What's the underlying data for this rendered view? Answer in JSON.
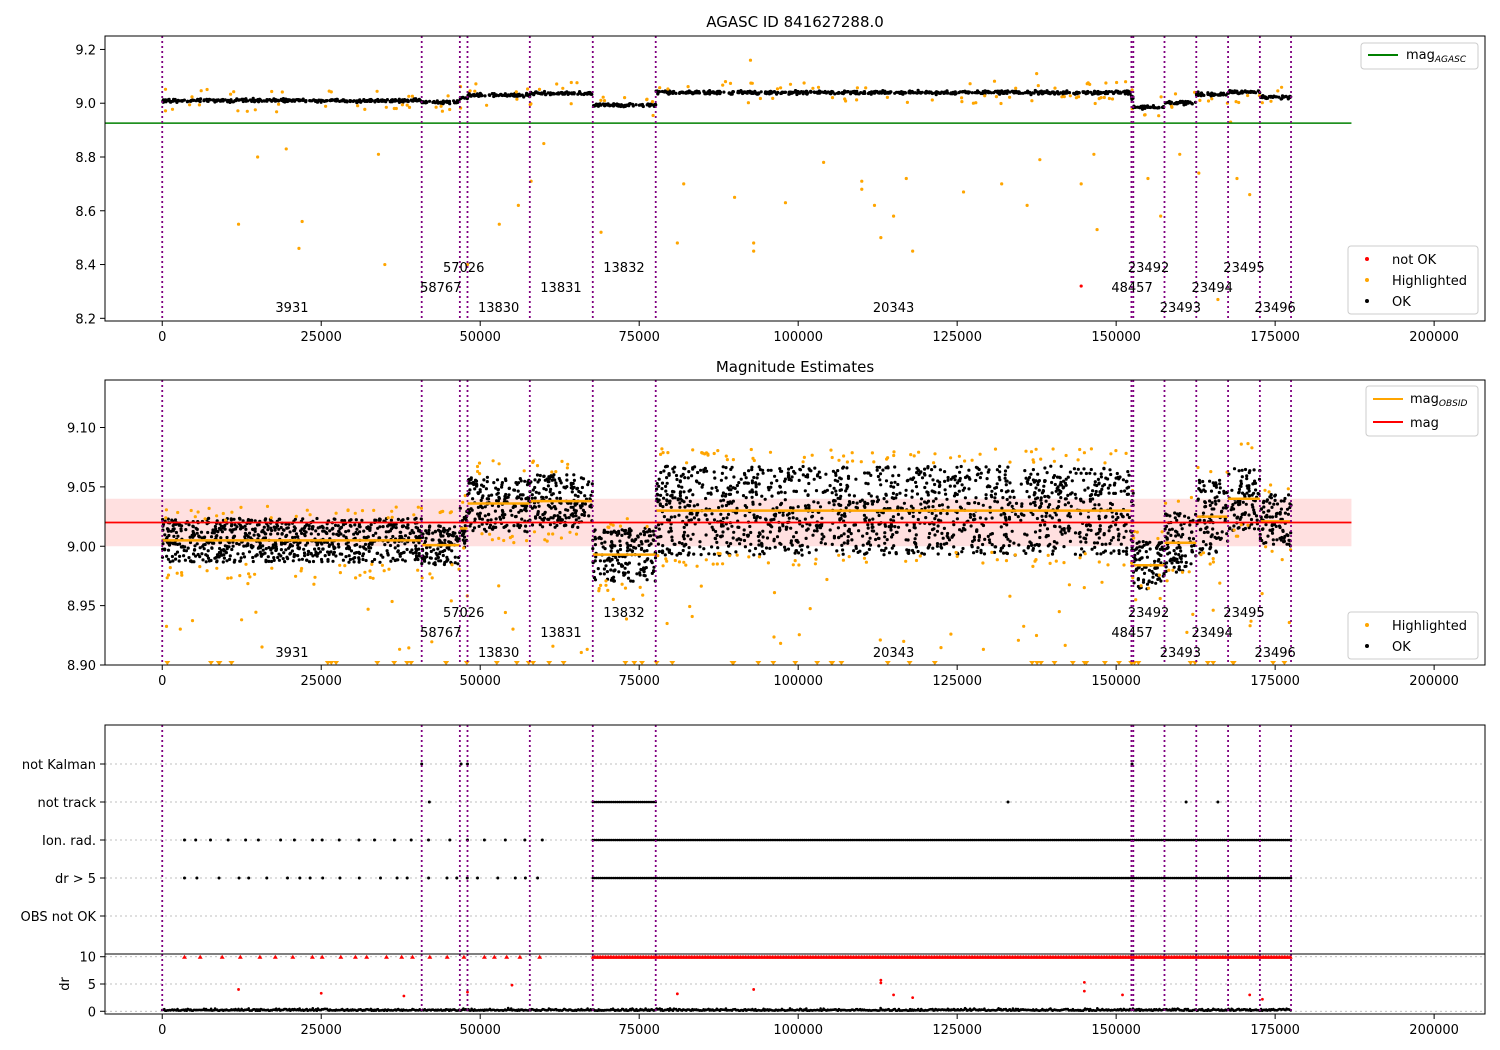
{
  "figure": {
    "title": "AGASC ID 841627288.0"
  },
  "chart_data": [
    {
      "type": "scatter",
      "title": "AGASC ID 841627288.0",
      "xlim": [
        -9000,
        208000
      ],
      "ylim": [
        8.19,
        9.25
      ],
      "xticks": [
        0,
        25000,
        50000,
        75000,
        100000,
        125000,
        150000,
        175000,
        200000
      ],
      "yticks": [
        8.2,
        8.4,
        8.6,
        8.8,
        9.0,
        9.2
      ],
      "obsid_boundaries": [
        0,
        40800,
        46800,
        48000,
        57800,
        67700,
        77600,
        152400,
        152700,
        157600,
        162600,
        167600,
        172600,
        177500
      ],
      "obsid_labels": [
        {
          "label": "3931",
          "x": 20400,
          "row": 0
        },
        {
          "label": "58767",
          "x": 43800,
          "row": 1
        },
        {
          "label": "57026",
          "x": 47400,
          "row": 2
        },
        {
          "label": "13830",
          "x": 52900,
          "row": 0
        },
        {
          "label": "13831",
          "x": 62700,
          "row": 1
        },
        {
          "label": "13832",
          "x": 72600,
          "row": 2
        },
        {
          "label": "20343",
          "x": 115000,
          "row": 0
        },
        {
          "label": "48457",
          "x": 152500,
          "row": 1
        },
        {
          "label": "23492",
          "x": 155100,
          "row": 2
        },
        {
          "label": "23493",
          "x": 160100,
          "row": 0
        },
        {
          "label": "23494",
          "x": 165100,
          "row": 1
        },
        {
          "label": "23495",
          "x": 170100,
          "row": 2
        },
        {
          "label": "23496",
          "x": 175000,
          "row": 0
        }
      ],
      "mag_agasc": 8.926,
      "segment_levels": [
        9.01,
        9.004,
        9.02,
        9.03,
        9.036,
        8.993,
        9.04,
        9.02,
        8.985,
        9.003,
        9.033,
        9.042,
        9.023
      ],
      "series": [
        {
          "name": "not OK",
          "color": "#ff0000"
        },
        {
          "name": "Highlighted",
          "color": "#ffa500"
        },
        {
          "name": "OK",
          "color": "#000000"
        },
        {
          "name": "mag_AGASC",
          "color": "#008000"
        }
      ],
      "outliers": [
        [
          12000,
          8.55
        ],
        [
          22000,
          8.56
        ],
        [
          21500,
          8.46
        ],
        [
          35000,
          8.4
        ],
        [
          15000,
          8.8
        ],
        [
          19500,
          8.83
        ],
        [
          34000,
          8.81
        ],
        [
          48000,
          8.4
        ],
        [
          53000,
          8.55
        ],
        [
          56000,
          8.62
        ],
        [
          58000,
          8.71
        ],
        [
          60000,
          8.85
        ],
        [
          69000,
          8.52
        ],
        [
          82000,
          8.7
        ],
        [
          81000,
          8.48
        ],
        [
          90000,
          8.65
        ],
        [
          93000,
          8.48
        ],
        [
          93000,
          8.45
        ],
        [
          98000,
          8.63
        ],
        [
          104000,
          8.78
        ],
        [
          110000,
          8.71
        ],
        [
          110000,
          8.68
        ],
        [
          112000,
          8.62
        ],
        [
          113000,
          8.5
        ],
        [
          115000,
          8.58
        ],
        [
          117000,
          8.72
        ],
        [
          118000,
          8.45
        ],
        [
          126000,
          8.67
        ],
        [
          132000,
          8.7
        ],
        [
          136000,
          8.62
        ],
        [
          138000,
          8.79
        ],
        [
          144500,
          8.7
        ],
        [
          146500,
          8.81
        ],
        [
          147000,
          8.53
        ],
        [
          155000,
          8.72
        ],
        [
          157000,
          8.58
        ],
        [
          160000,
          8.81
        ],
        [
          163000,
          8.74
        ],
        [
          166000,
          8.27
        ],
        [
          168000,
          8.93
        ],
        [
          169000,
          8.72
        ],
        [
          171000,
          8.66
        ],
        [
          92500,
          9.16
        ],
        [
          137500,
          9.11
        ]
      ],
      "not_ok_points": [
        [
          144500,
          8.32
        ]
      ],
      "legend_top": "mag_AGASC",
      "legend_bottom": [
        "not OK",
        "Highlighted",
        "OK"
      ],
      "legend_placement": [
        "top-right",
        "bottom-right"
      ]
    },
    {
      "type": "scatter",
      "title": "Magnitude Estimates",
      "xlim": [
        -9000,
        208000
      ],
      "ylim": [
        8.9,
        9.14
      ],
      "xticks": [
        0,
        25000,
        50000,
        75000,
        100000,
        125000,
        150000,
        175000,
        200000
      ],
      "yticks": [
        8.9,
        8.95,
        9.0,
        9.05,
        9.1
      ],
      "mag": 9.02,
      "mag_band": [
        9.0,
        9.04
      ],
      "segments": [
        {
          "x0": 0,
          "x1": 40800,
          "level": 9.005,
          "lo": 8.985,
          "hi": 9.022
        },
        {
          "x0": 40800,
          "x1": 46800,
          "level": 9.001,
          "lo": 8.985,
          "hi": 9.018
        },
        {
          "x0": 46800,
          "x1": 48000,
          "level": 9.015,
          "lo": 9.0,
          "hi": 9.035
        },
        {
          "x0": 48000,
          "x1": 57800,
          "level": 9.036,
          "lo": 9.012,
          "hi": 9.06
        },
        {
          "x0": 57800,
          "x1": 67700,
          "level": 9.038,
          "lo": 9.015,
          "hi": 9.06
        },
        {
          "x0": 67700,
          "x1": 77600,
          "level": 8.993,
          "lo": 8.97,
          "hi": 9.015
        },
        {
          "x0": 77600,
          "x1": 152400,
          "level": 9.03,
          "lo": 8.995,
          "hi": 9.07
        },
        {
          "x0": 152400,
          "x1": 152700,
          "level": 9.02,
          "lo": 8.995,
          "hi": 9.045
        },
        {
          "x0": 152700,
          "x1": 157600,
          "level": 8.984,
          "lo": 8.965,
          "hi": 9.005
        },
        {
          "x0": 157600,
          "x1": 162600,
          "level": 9.003,
          "lo": 8.98,
          "hi": 9.03
        },
        {
          "x0": 162600,
          "x1": 167600,
          "level": 9.025,
          "lo": 8.995,
          "hi": 9.06
        },
        {
          "x0": 167600,
          "x1": 172600,
          "level": 9.04,
          "lo": 9.02,
          "hi": 9.075
        },
        {
          "x0": 172600,
          "x1": 177500,
          "level": 9.021,
          "lo": 9.0,
          "hi": 9.045
        }
      ],
      "series": [
        {
          "name": "mag_OBSID",
          "color": "#ffa500"
        },
        {
          "name": "mag",
          "color": "#ff0000"
        },
        {
          "name": "Highlighted",
          "color": "#ffa500"
        },
        {
          "name": "OK",
          "color": "#000000"
        }
      ],
      "legend_top": [
        "mag_OBSID",
        "mag"
      ],
      "legend_bottom": [
        "Highlighted",
        "OK"
      ],
      "legend_placement": [
        "top-right",
        "bottom-right"
      ]
    },
    {
      "type": "scatter",
      "title": "",
      "xlim": [
        -9000,
        208000
      ],
      "categories": [
        "not Kalman",
        "not track",
        "Ion. rad.",
        "dr > 5",
        "OBS not OK"
      ],
      "flag_ranges": {
        "not Kalman": [
          [
            40800,
            40800
          ],
          [
            47000,
            47000
          ],
          [
            48000,
            48000
          ],
          [
            152500,
            152500
          ]
        ],
        "not track": [
          [
            42000,
            42000
          ],
          [
            67700,
            77600
          ],
          [
            133000,
            133000
          ],
          [
            161000,
            161000
          ],
          [
            166000,
            166000
          ]
        ],
        "Ion. rad.": [
          [
            3500,
            60000,
            "sparse"
          ],
          [
            67700,
            177500,
            "dense"
          ]
        ],
        "dr > 5": [
          [
            3500,
            60000,
            "sparse"
          ],
          [
            67700,
            177500,
            "dense"
          ]
        ],
        "OBS not OK": []
      }
    },
    {
      "type": "scatter",
      "title": "",
      "ylabel": "dr",
      "xlim": [
        -9000,
        208000
      ],
      "ylim": [
        -0.5,
        10.5
      ],
      "yticks": [
        0,
        5,
        10
      ],
      "xticks": [
        0,
        25000,
        50000,
        75000,
        100000,
        125000,
        150000,
        175000,
        200000
      ],
      "clipped_value": 10,
      "dr_outliers": [
        [
          12000,
          4.0
        ],
        [
          25000,
          3.3
        ],
        [
          38000,
          2.8
        ],
        [
          48000,
          3.5
        ],
        [
          55000,
          4.8
        ],
        [
          81000,
          3.2
        ],
        [
          93000,
          4.0
        ],
        [
          113000,
          5.7
        ],
        [
          113000,
          5.2
        ],
        [
          115000,
          3.0
        ],
        [
          118000,
          2.5
        ],
        [
          145000,
          5.3
        ],
        [
          145000,
          3.7
        ],
        [
          151000,
          3.0
        ],
        [
          171000,
          3.0
        ],
        [
          173000,
          2.2
        ]
      ]
    }
  ]
}
